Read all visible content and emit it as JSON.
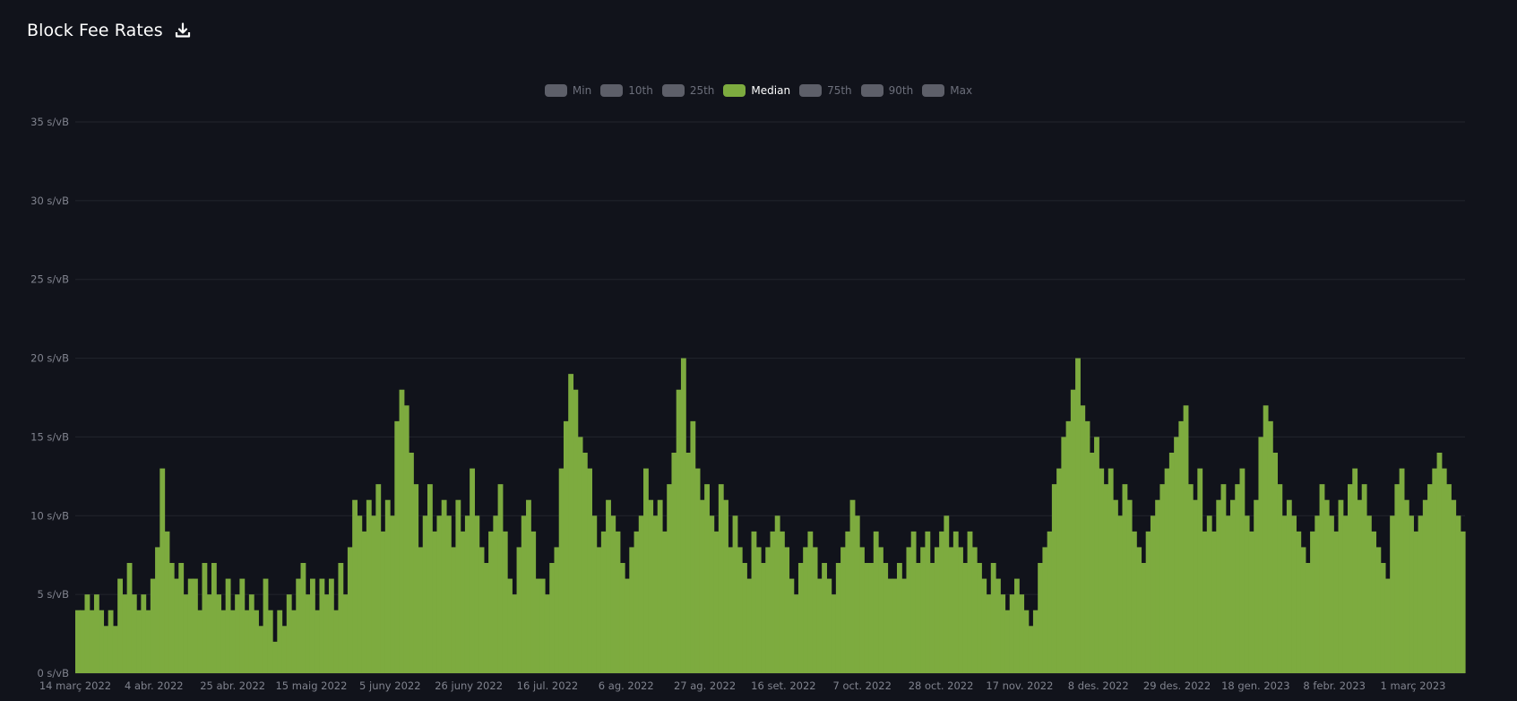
{
  "header": {
    "title": "Block Fee Rates",
    "download_icon": "download-icon"
  },
  "legend": [
    {
      "label": "Min",
      "active": false
    },
    {
      "label": "10th",
      "active": false
    },
    {
      "label": "25th",
      "active": false
    },
    {
      "label": "Median",
      "active": true
    },
    {
      "label": "75th",
      "active": false
    },
    {
      "label": "90th",
      "active": false
    },
    {
      "label": "Max",
      "active": false
    }
  ],
  "colors": {
    "background": "#11131b",
    "median": "#7dab3f",
    "inactive_swatch": "#5d5f69",
    "grid": "#22242d",
    "axis_text": "#80838e"
  },
  "chart_data": {
    "type": "bar",
    "title": "Block Fee Rates",
    "series": [
      {
        "name": "Median",
        "color": "#7dab3f"
      }
    ],
    "y_unit": "s/vB",
    "ylim": [
      0,
      35
    ],
    "y_ticks": [
      "0 s/vB",
      "5 s/vB",
      "10 s/vB",
      "15 s/vB",
      "20 s/vB",
      "25 s/vB",
      "30 s/vB",
      "35 s/vB"
    ],
    "x_ticks": [
      "14 març 2022",
      "4 abr. 2022",
      "25 abr. 2022",
      "15 maig 2022",
      "5 juny 2022",
      "26 juny 2022",
      "16 jul. 2022",
      "6 ag. 2022",
      "27 ag. 2022",
      "16 set. 2022",
      "7 oct. 2022",
      "28 oct. 2022",
      "17 nov. 2022",
      "8 des. 2022",
      "29 des. 2022",
      "18 gen. 2023",
      "8 febr. 2023",
      "1 març 2023"
    ],
    "grid": true,
    "legend_position": "top-center",
    "approx_values": [
      4,
      4,
      5,
      4,
      5,
      4,
      3,
      4,
      3,
      6,
      5,
      7,
      5,
      4,
      5,
      4,
      6,
      8,
      13,
      9,
      7,
      6,
      7,
      5,
      6,
      6,
      4,
      7,
      5,
      7,
      5,
      4,
      6,
      4,
      5,
      6,
      4,
      5,
      4,
      3,
      6,
      4,
      2,
      4,
      3,
      5,
      4,
      6,
      7,
      5,
      6,
      4,
      6,
      5,
      6,
      4,
      7,
      5,
      8,
      11,
      10,
      9,
      11,
      10,
      12,
      9,
      11,
      10,
      16,
      18,
      17,
      14,
      12,
      8,
      10,
      12,
      9,
      10,
      11,
      10,
      8,
      11,
      9,
      10,
      13,
      10,
      8,
      7,
      9,
      10,
      12,
      9,
      6,
      5,
      8,
      10,
      11,
      9,
      6,
      6,
      5,
      7,
      8,
      13,
      16,
      19,
      18,
      15,
      14,
      13,
      10,
      8,
      9,
      11,
      10,
      9,
      7,
      6,
      8,
      9,
      10,
      13,
      11,
      10,
      11,
      9,
      12,
      14,
      18,
      20,
      14,
      16,
      13,
      11,
      12,
      10,
      9,
      12,
      11,
      8,
      10,
      8,
      7,
      6,
      9,
      8,
      7,
      8,
      9,
      10,
      9,
      8,
      6,
      5,
      7,
      8,
      9,
      8,
      6,
      7,
      6,
      5,
      7,
      8,
      9,
      11,
      10,
      8,
      7,
      7,
      9,
      8,
      7,
      6,
      6,
      7,
      6,
      8,
      9,
      7,
      8,
      9,
      7,
      8,
      9,
      10,
      8,
      9,
      8,
      7,
      9,
      8,
      7,
      6,
      5,
      7,
      6,
      5,
      4,
      5,
      6,
      5,
      4,
      3,
      4,
      7,
      8,
      9,
      12,
      13,
      15,
      16,
      18,
      20,
      17,
      16,
      14,
      15,
      13,
      12,
      13,
      11,
      10,
      12,
      11,
      9,
      8,
      7,
      9,
      10,
      11,
      12,
      13,
      14,
      15,
      16,
      17,
      12,
      11,
      13,
      9,
      10,
      9,
      11,
      12,
      10,
      11,
      12,
      13,
      10,
      9,
      11,
      15,
      17,
      16,
      14,
      12,
      10,
      11,
      10,
      9,
      8,
      7,
      9,
      10,
      12,
      11,
      10,
      9,
      11,
      10,
      12,
      13,
      11,
      12,
      10,
      9,
      8,
      7,
      6,
      10,
      12,
      13,
      11,
      10,
      9,
      10,
      11,
      12,
      13,
      14,
      13,
      12,
      11,
      10,
      9
    ]
  }
}
